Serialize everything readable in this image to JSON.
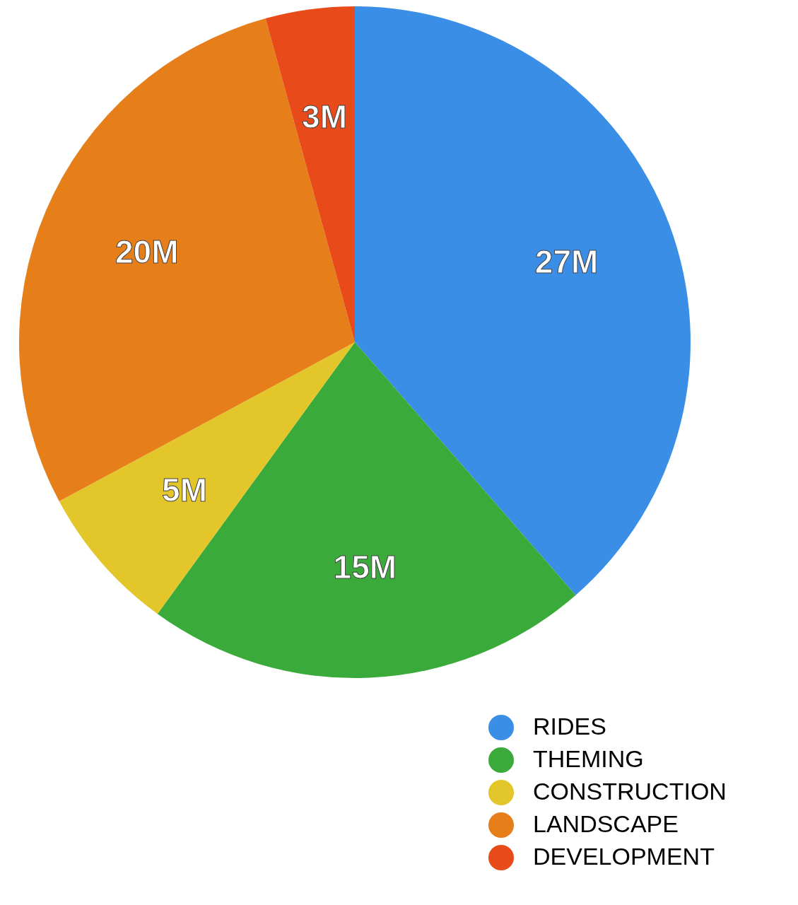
{
  "chart_data": {
    "type": "pie",
    "categories": [
      "RIDES",
      "THEMING",
      "CONSTRUCTION",
      "LANDSCAPE",
      "DEVELOPMENT"
    ],
    "values": [
      27,
      15,
      5,
      20,
      3
    ],
    "colors": [
      "#3a8ee6",
      "#3aaa3a",
      "#e2c62a",
      "#e67e1a",
      "#e84a1a"
    ],
    "value_labels": [
      "27M",
      "15M",
      "5M",
      "20M",
      "3M"
    ],
    "legend": "bottom right"
  }
}
